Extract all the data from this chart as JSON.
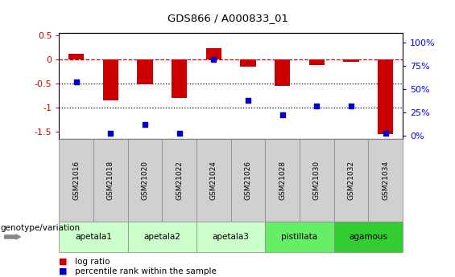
{
  "title": "GDS866 / A000833_01",
  "samples": [
    "GSM21016",
    "GSM21018",
    "GSM21020",
    "GSM21022",
    "GSM21024",
    "GSM21026",
    "GSM21028",
    "GSM21030",
    "GSM21032",
    "GSM21034"
  ],
  "log_ratio": [
    0.12,
    -0.85,
    -0.52,
    -0.8,
    0.23,
    -0.15,
    -0.55,
    -0.12,
    -0.05,
    -1.55
  ],
  "percentile_rank": [
    58,
    2,
    12,
    2,
    82,
    38,
    22,
    32,
    32,
    2
  ],
  "ylim_left": [
    -1.65,
    0.55
  ],
  "ylim_right": [
    -3.3,
    110
  ],
  "yticks_left": [
    -1.5,
    -1.0,
    -0.5,
    0.0,
    0.5
  ],
  "yticks_right": [
    0,
    25,
    50,
    75,
    100
  ],
  "ytick_right_labels": [
    "0%",
    "25%",
    "50%",
    "75%",
    "100%"
  ],
  "hlines": [
    0.0,
    -0.5,
    -1.0
  ],
  "hline_styles": [
    "dashed",
    "dotted",
    "dotted"
  ],
  "hline_colors": [
    "#cc0000",
    "black",
    "black"
  ],
  "bar_color": "#cc0000",
  "dot_color": "#0000cc",
  "groups": [
    {
      "name": "apetala1",
      "start": 0,
      "end": 2,
      "color": "#ccffcc"
    },
    {
      "name": "apetala2",
      "start": 2,
      "end": 4,
      "color": "#ccffcc"
    },
    {
      "name": "apetala3",
      "start": 4,
      "end": 6,
      "color": "#ccffcc"
    },
    {
      "name": "pistillata",
      "start": 6,
      "end": 8,
      "color": "#66ee66"
    },
    {
      "name": "agamous",
      "start": 8,
      "end": 10,
      "color": "#33cc33"
    }
  ],
  "sample_box_color": "#d0d0d0",
  "legend_bar_label": "log ratio",
  "legend_dot_label": "percentile rank within the sample",
  "genotype_label": "genotype/variation"
}
